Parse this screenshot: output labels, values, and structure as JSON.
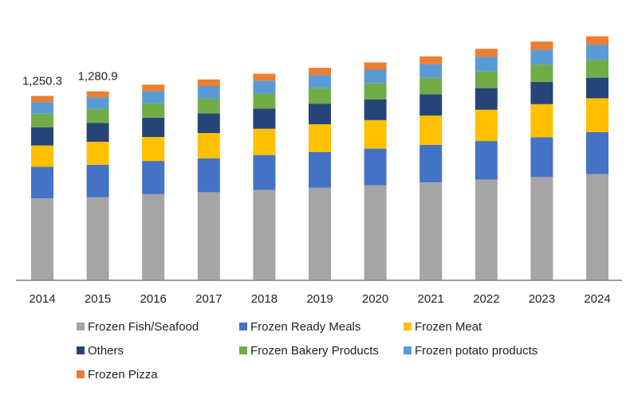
{
  "chart_data": {
    "type": "bar",
    "stacked": true,
    "categories": [
      "2014",
      "2015",
      "2016",
      "2017",
      "2018",
      "2019",
      "2020",
      "2021",
      "2022",
      "2023",
      "2024"
    ],
    "series": [
      {
        "name": "Frozen Fish/Seafood",
        "color": "#a5a5a5",
        "values": [
          555,
          564,
          584,
          597,
          613,
          627,
          645,
          663,
          682,
          700,
          720
        ]
      },
      {
        "name": "Frozen Ready Meals",
        "color": "#4472c4",
        "values": [
          214,
          219,
          225,
          230,
          236,
          242,
          248,
          255,
          262,
          270,
          284
        ]
      },
      {
        "name": "Frozen Meat",
        "color": "#ffc000",
        "values": [
          145,
          156,
          162,
          171,
          178,
          189,
          193,
          199,
          212,
          224,
          230
        ]
      },
      {
        "name": "Others",
        "color": "#264478",
        "values": [
          124,
          127,
          131,
          133,
          136,
          139,
          141,
          144,
          147,
          150,
          139
        ]
      },
      {
        "name": "Frozen Bakery Products",
        "color": "#70ad47",
        "values": [
          92,
          95,
          98,
          100,
          102,
          105,
          108,
          111,
          115,
          118,
          120
        ]
      },
      {
        "name": "Frozen potato products",
        "color": "#5b9bd5",
        "values": [
          78,
          80,
          83,
          86,
          88,
          90,
          93,
          95,
          98,
          101,
          104
        ]
      },
      {
        "name": "Frozen Pizza",
        "color": "#ed7d31",
        "values": [
          42,
          40,
          43,
          45,
          47,
          48,
          49,
          51,
          53,
          55,
          57
        ]
      }
    ],
    "data_labels": [
      {
        "category": "2014",
        "text": "1,250.3"
      },
      {
        "category": "2015",
        "text": "1,280.9"
      }
    ],
    "ylim": [
      0,
      1900
    ],
    "grid": false,
    "legend_position": "bottom",
    "title": "",
    "xlabel": "",
    "ylabel": ""
  }
}
